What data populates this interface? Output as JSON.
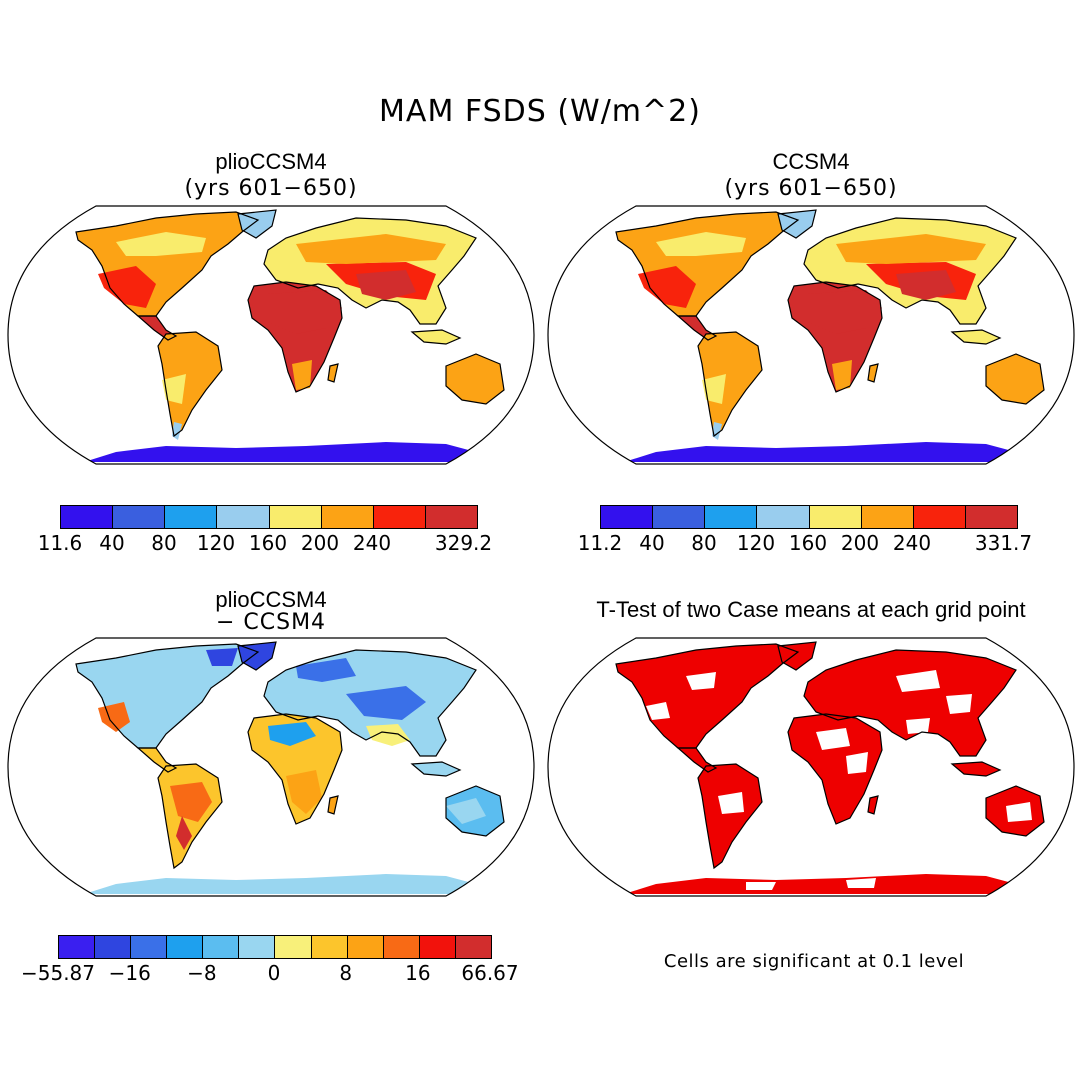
{
  "main_title": "MAM FSDS (W/m^2)",
  "panels": [
    {
      "title": "plioCCSM4",
      "subtitle": "(yrs 601−650)",
      "map_fill": "absolute"
    },
    {
      "title": "CCSM4",
      "subtitle": "(yrs 601−650)",
      "map_fill": "absolute"
    },
    {
      "title": "plioCCSM4",
      "subtitle": "− CCSM4",
      "map_fill": "difference"
    },
    {
      "title": "T-Test of two Case means at each grid point",
      "subtitle": "",
      "map_fill": "significance"
    }
  ],
  "colorbars": [
    {
      "colors": [
        "#3311ee",
        "#3a5fdf",
        "#1ea0ee",
        "#99cdee",
        "#f9ec6c",
        "#fca315",
        "#f8230c",
        "#d22d2d"
      ],
      "tick_labels": [
        "11.6",
        "40",
        "80",
        "120",
        "160",
        "200",
        "240",
        "329.2"
      ]
    },
    {
      "colors": [
        "#3311ee",
        "#3a5fdf",
        "#1ea0ee",
        "#99cdee",
        "#f9ec6c",
        "#fca315",
        "#f8230c",
        "#d22d2d"
      ],
      "tick_labels": [
        "11.2",
        "40",
        "80",
        "120",
        "160",
        "200",
        "240",
        "331.7"
      ]
    },
    {
      "colors": [
        "#3a1ff0",
        "#2f45e0",
        "#3a70e8",
        "#1ea0ee",
        "#5bbdf0",
        "#99d6f0",
        "#f8f07a",
        "#fcc52c",
        "#fca315",
        "#f86a15",
        "#f2120c",
        "#d22d2d"
      ],
      "tick_labels": [
        "−55.87",
        "−16",
        "−8",
        "0",
        "8",
        "16",
        "66.67"
      ]
    }
  ],
  "significance_note": "Cells are significant at 0.1 level",
  "colors": {
    "significance": "#ee0000",
    "ocean": "#ffffff",
    "coast": "#000000"
  }
}
